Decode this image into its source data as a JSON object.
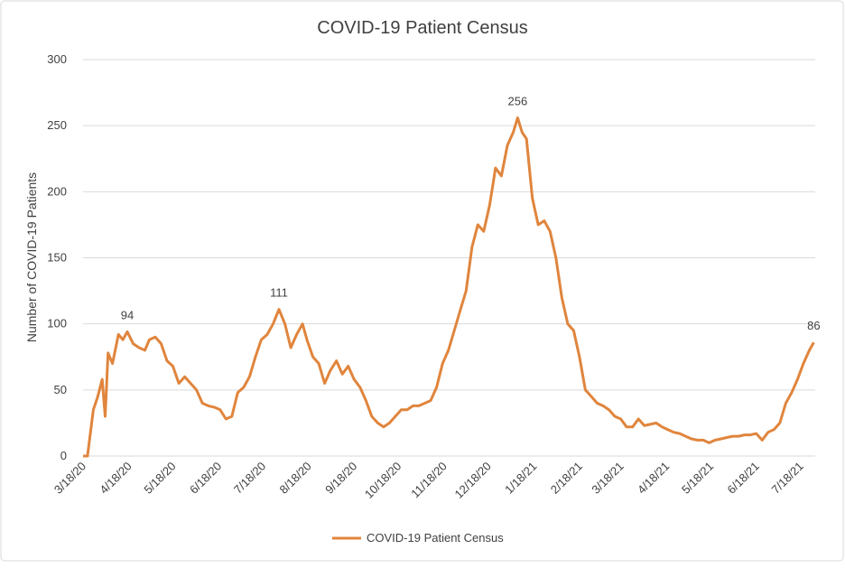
{
  "chart_data": {
    "type": "line",
    "title": "COVID-19 Patient Census",
    "y_label": "Number of COVID-19 Patients",
    "x": [
      "3/18/20",
      "3/21/20",
      "3/25/20",
      "3/28/20",
      "3/31/20",
      "4/2/20",
      "4/4/20",
      "4/7/20",
      "4/11/20",
      "4/14/20",
      "4/17/20",
      "4/21/20",
      "4/25/20",
      "4/29/20",
      "5/2/20",
      "5/6/20",
      "5/10/20",
      "5/14/20",
      "5/18/20",
      "5/22/20",
      "5/26/20",
      "5/30/20",
      "6/3/20",
      "6/7/20",
      "6/11/20",
      "6/15/20",
      "6/19/20",
      "6/23/20",
      "6/27/20",
      "7/1/20",
      "7/5/20",
      "7/9/20",
      "7/13/20",
      "7/17/20",
      "7/21/20",
      "7/25/20",
      "7/29/20",
      "8/2/20",
      "8/6/20",
      "8/10/20",
      "8/14/20",
      "8/17/20",
      "8/21/20",
      "8/25/20",
      "8/29/20",
      "9/2/20",
      "9/6/20",
      "9/10/20",
      "9/14/20",
      "9/18/20",
      "9/22/20",
      "9/26/20",
      "9/30/20",
      "10/4/20",
      "10/8/20",
      "10/12/20",
      "10/16/20",
      "10/20/20",
      "10/24/20",
      "10/28/20",
      "11/1/20",
      "11/5/20",
      "11/9/20",
      "11/13/20",
      "11/17/20",
      "11/21/20",
      "11/25/20",
      "11/29/20",
      "12/3/20",
      "12/7/20",
      "12/11/20",
      "12/15/20",
      "12/19/20",
      "12/23/20",
      "12/27/20",
      "12/31/20",
      "1/4/21",
      "1/7/21",
      "1/10/21",
      "1/13/21",
      "1/17/21",
      "1/21/21",
      "1/25/21",
      "1/29/21",
      "2/2/21",
      "2/6/21",
      "2/10/21",
      "2/14/21",
      "2/18/21",
      "2/22/21",
      "2/26/21",
      "3/2/21",
      "3/6/21",
      "3/10/21",
      "3/14/21",
      "3/18/21",
      "3/22/21",
      "3/26/21",
      "3/30/21",
      "4/3/21",
      "4/7/21",
      "4/11/21",
      "4/15/21",
      "4/19/21",
      "4/23/21",
      "4/27/21",
      "5/1/21",
      "5/5/21",
      "5/9/21",
      "5/13/21",
      "5/17/21",
      "5/21/21",
      "5/25/21",
      "5/29/21",
      "6/2/21",
      "6/6/21",
      "6/10/21",
      "6/14/21",
      "6/18/21",
      "6/22/21",
      "6/26/21",
      "6/30/21",
      "7/4/21",
      "7/8/21",
      "7/12/21",
      "7/16/21",
      "7/20/21",
      "7/24/21",
      "7/27/21"
    ],
    "series": [
      {
        "name": "COVID-19 Patient Census",
        "color": "#e0853d",
        "values": [
          0,
          0,
          35,
          45,
          58,
          30,
          78,
          70,
          92,
          88,
          94,
          85,
          82,
          80,
          88,
          90,
          85,
          72,
          68,
          55,
          60,
          55,
          50,
          40,
          38,
          37,
          35,
          28,
          30,
          48,
          52,
          60,
          75,
          88,
          92,
          100,
          111,
          100,
          82,
          92,
          100,
          88,
          75,
          70,
          55,
          65,
          72,
          62,
          68,
          58,
          52,
          42,
          30,
          25,
          22,
          25,
          30,
          35,
          35,
          38,
          38,
          40,
          42,
          52,
          70,
          80,
          95,
          110,
          125,
          158,
          175,
          170,
          190,
          218,
          212,
          235,
          245,
          256,
          245,
          240,
          195,
          175,
          178,
          170,
          150,
          120,
          100,
          95,
          75,
          50,
          45,
          40,
          38,
          35,
          30,
          28,
          22,
          22,
          28,
          23,
          24,
          25,
          22,
          20,
          18,
          17,
          15,
          13,
          12,
          12,
          10,
          12,
          13,
          14,
          15,
          15,
          16,
          16,
          17,
          12,
          18,
          20,
          25,
          40,
          48,
          58,
          70,
          80,
          86
        ],
        "value_labels": [
          null,
          null,
          null,
          null,
          null,
          null,
          null,
          null,
          null,
          null,
          "94",
          null,
          null,
          null,
          null,
          null,
          null,
          null,
          null,
          null,
          null,
          null,
          null,
          null,
          null,
          null,
          null,
          null,
          null,
          null,
          null,
          null,
          null,
          null,
          null,
          null,
          "111",
          null,
          null,
          null,
          null,
          null,
          null,
          null,
          null,
          null,
          null,
          null,
          null,
          null,
          null,
          null,
          null,
          null,
          null,
          null,
          null,
          null,
          null,
          null,
          null,
          null,
          null,
          null,
          null,
          null,
          null,
          null,
          null,
          null,
          null,
          null,
          null,
          null,
          null,
          null,
          null,
          "256",
          null,
          null,
          null,
          null,
          null,
          null,
          null,
          null,
          null,
          null,
          null,
          null,
          null,
          null,
          null,
          null,
          null,
          null,
          null,
          null,
          null,
          null,
          null,
          null,
          null,
          null,
          null,
          null,
          null,
          null,
          null,
          null,
          null,
          null,
          null,
          null,
          null,
          null,
          null,
          null,
          null,
          null,
          null,
          null,
          null,
          null,
          null,
          null,
          null,
          null,
          "86"
        ]
      }
    ],
    "xlim": [
      "3/18/20",
      "7/28/21"
    ],
    "xticks": [
      "3/18/20",
      "4/18/20",
      "5/18/20",
      "6/18/20",
      "7/18/20",
      "8/18/20",
      "9/18/20",
      "10/18/20",
      "11/18/20",
      "12/18/20",
      "1/18/21",
      "2/18/21",
      "3/18/21",
      "4/18/21",
      "5/18/21",
      "6/18/21",
      "7/18/21"
    ],
    "ylim": [
      0,
      300
    ],
    "yticks": [
      0,
      50,
      100,
      150,
      200,
      250,
      300
    ],
    "grid": true,
    "legend": "bottom"
  }
}
